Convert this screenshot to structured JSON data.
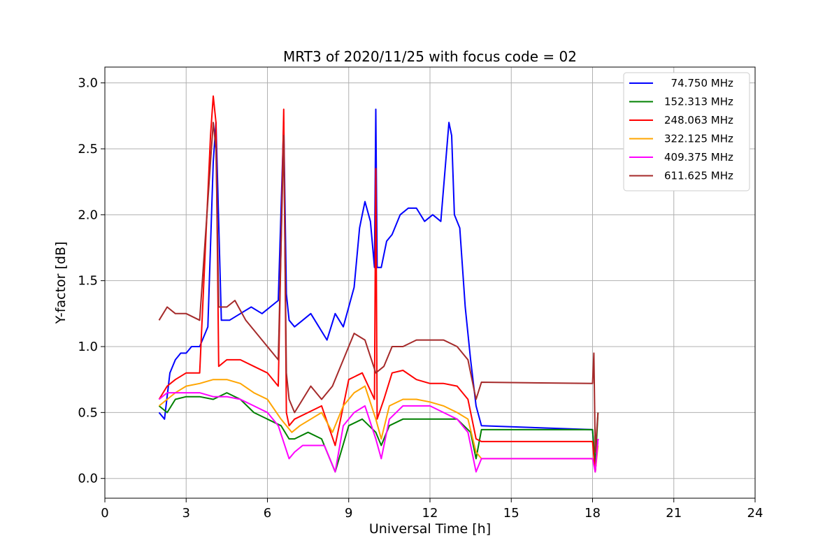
{
  "chart_data": {
    "type": "line",
    "title": "MRT3 of 2020/11/25 with focus code = 02",
    "xlabel": "Universal Time [h]",
    "ylabel": "Y-factor [dB]",
    "xlim": [
      0,
      24
    ],
    "ylim": [
      -0.15,
      3.12
    ],
    "xticks": [
      0,
      3,
      6,
      9,
      12,
      15,
      18,
      21,
      24
    ],
    "yticks": [
      0.0,
      0.5,
      1.0,
      1.5,
      2.0,
      2.5,
      3.0
    ],
    "xtick_labels": [
      "0",
      "3",
      "6",
      "9",
      "12",
      "15",
      "18",
      "21",
      "24"
    ],
    "ytick_labels": [
      "0.0",
      "0.5",
      "1.0",
      "1.5",
      "2.0",
      "2.5",
      "3.0"
    ],
    "grid": true,
    "legend_position": "top-right",
    "series": [
      {
        "name": "  74.750 MHz",
        "color": "#0000ff",
        "x": [
          2.0,
          2.2,
          2.4,
          2.6,
          2.8,
          3.0,
          3.2,
          3.5,
          3.8,
          4.0,
          4.1,
          4.3,
          4.6,
          5.0,
          5.4,
          5.8,
          6.1,
          6.4,
          6.6,
          6.7,
          6.8,
          7.0,
          7.3,
          7.6,
          7.9,
          8.2,
          8.5,
          8.8,
          9.0,
          9.2,
          9.4,
          9.5,
          9.6,
          9.8,
          9.95,
          10.0,
          10.05,
          10.2,
          10.4,
          10.6,
          10.9,
          11.2,
          11.5,
          11.8,
          12.1,
          12.4,
          12.7,
          12.8,
          12.9,
          13.1,
          13.3,
          13.5,
          13.7,
          13.9,
          18.0,
          18.1,
          18.2
        ],
        "y": [
          0.5,
          0.45,
          0.8,
          0.9,
          0.95,
          0.95,
          1.0,
          1.0,
          1.15,
          2.4,
          2.7,
          1.2,
          1.2,
          1.25,
          1.3,
          1.25,
          1.3,
          1.35,
          2.7,
          1.4,
          1.2,
          1.15,
          1.2,
          1.25,
          1.15,
          1.05,
          1.25,
          1.15,
          1.3,
          1.45,
          1.9,
          2.0,
          2.1,
          1.95,
          1.6,
          2.8,
          1.6,
          1.6,
          1.8,
          1.85,
          2.0,
          2.05,
          2.05,
          1.95,
          2.0,
          1.95,
          2.7,
          2.6,
          2.0,
          1.9,
          1.3,
          0.9,
          0.55,
          0.4,
          0.37,
          0.05,
          0.3
        ]
      },
      {
        "name": "152.313 MHz",
        "color": "#008000",
        "x": [
          2.0,
          2.3,
          2.6,
          3.0,
          3.5,
          4.0,
          4.5,
          5.0,
          5.5,
          6.0,
          6.5,
          6.8,
          7.0,
          7.5,
          8.0,
          8.5,
          9.0,
          9.5,
          10.0,
          10.2,
          10.5,
          11.0,
          11.5,
          12.0,
          12.5,
          13.0,
          13.5,
          13.7,
          13.9,
          18.0,
          18.1,
          18.2
        ],
        "y": [
          0.55,
          0.5,
          0.6,
          0.62,
          0.62,
          0.6,
          0.65,
          0.6,
          0.5,
          0.45,
          0.4,
          0.3,
          0.3,
          0.35,
          0.3,
          0.05,
          0.4,
          0.45,
          0.35,
          0.25,
          0.4,
          0.45,
          0.45,
          0.45,
          0.45,
          0.45,
          0.35,
          0.15,
          0.37,
          0.37,
          0.1,
          0.5
        ]
      },
      {
        "name": "248.063 MHz",
        "color": "#ff0000",
        "x": [
          2.0,
          2.3,
          2.6,
          3.0,
          3.5,
          3.9,
          4.0,
          4.1,
          4.2,
          4.5,
          5.0,
          5.5,
          6.0,
          6.4,
          6.6,
          6.7,
          6.8,
          7.0,
          7.5,
          8.0,
          8.5,
          9.0,
          9.5,
          9.95,
          10.0,
          10.05,
          10.3,
          10.6,
          11.0,
          11.5,
          12.0,
          12.5,
          13.0,
          13.4,
          13.7,
          13.9,
          18.0,
          18.1,
          18.2
        ],
        "y": [
          0.6,
          0.7,
          0.75,
          0.8,
          0.8,
          2.6,
          2.9,
          2.7,
          0.85,
          0.9,
          0.9,
          0.85,
          0.8,
          0.7,
          2.8,
          0.5,
          0.4,
          0.45,
          0.5,
          0.55,
          0.25,
          0.75,
          0.8,
          0.6,
          2.35,
          0.45,
          0.6,
          0.8,
          0.82,
          0.75,
          0.72,
          0.72,
          0.7,
          0.6,
          0.3,
          0.28,
          0.28,
          0.05,
          0.3
        ]
      },
      {
        "name": "322.125 MHz",
        "color": "#ffa500",
        "x": [
          2.0,
          2.3,
          2.6,
          3.0,
          3.5,
          4.0,
          4.5,
          5.0,
          5.5,
          6.0,
          6.5,
          6.9,
          7.2,
          7.6,
          8.0,
          8.4,
          8.8,
          9.2,
          9.6,
          10.0,
          10.2,
          10.5,
          11.0,
          11.5,
          12.0,
          12.5,
          13.0,
          13.4,
          13.7,
          13.9,
          18.0,
          18.1,
          18.2
        ],
        "y": [
          0.55,
          0.6,
          0.65,
          0.7,
          0.72,
          0.75,
          0.75,
          0.72,
          0.65,
          0.6,
          0.45,
          0.35,
          0.4,
          0.45,
          0.5,
          0.35,
          0.55,
          0.65,
          0.7,
          0.45,
          0.3,
          0.55,
          0.6,
          0.6,
          0.58,
          0.55,
          0.5,
          0.45,
          0.2,
          0.15,
          0.15,
          0.05,
          0.25
        ]
      },
      {
        "name": "409.375 MHz",
        "color": "#ff00ff",
        "x": [
          2.0,
          2.3,
          2.6,
          3.0,
          3.5,
          4.0,
          4.5,
          5.0,
          5.5,
          6.0,
          6.4,
          6.8,
          7.0,
          7.3,
          7.7,
          8.1,
          8.5,
          8.8,
          9.2,
          9.6,
          10.0,
          10.2,
          10.5,
          11.0,
          11.5,
          12.0,
          12.5,
          13.0,
          13.4,
          13.7,
          13.9,
          18.0,
          18.1,
          18.2
        ],
        "y": [
          0.6,
          0.65,
          0.65,
          0.65,
          0.65,
          0.62,
          0.62,
          0.6,
          0.55,
          0.5,
          0.4,
          0.15,
          0.2,
          0.25,
          0.25,
          0.25,
          0.05,
          0.4,
          0.5,
          0.55,
          0.3,
          0.15,
          0.45,
          0.55,
          0.55,
          0.55,
          0.5,
          0.45,
          0.35,
          0.05,
          0.15,
          0.15,
          0.05,
          0.3
        ]
      },
      {
        "name": "611.625 MHz",
        "color": "#a52a2a",
        "x": [
          2.0,
          2.3,
          2.6,
          3.0,
          3.5,
          3.9,
          4.0,
          4.1,
          4.2,
          4.5,
          4.8,
          5.2,
          5.6,
          6.0,
          6.4,
          6.6,
          6.7,
          6.8,
          7.0,
          7.3,
          7.6,
          8.0,
          8.4,
          8.8,
          9.2,
          9.6,
          10.0,
          10.3,
          10.6,
          11.0,
          11.5,
          12.0,
          12.5,
          13.0,
          13.4,
          13.7,
          13.9,
          18.0,
          18.05,
          18.1,
          18.2
        ],
        "y": [
          1.2,
          1.3,
          1.25,
          1.25,
          1.2,
          2.4,
          2.7,
          2.5,
          1.3,
          1.3,
          1.35,
          1.2,
          1.1,
          1.0,
          0.9,
          2.6,
          0.8,
          0.6,
          0.5,
          0.6,
          0.7,
          0.6,
          0.7,
          0.9,
          1.1,
          1.05,
          0.8,
          0.85,
          1.0,
          1.0,
          1.05,
          1.05,
          1.05,
          1.0,
          0.9,
          0.6,
          0.73,
          0.72,
          0.95,
          0.2,
          0.5
        ]
      }
    ]
  }
}
